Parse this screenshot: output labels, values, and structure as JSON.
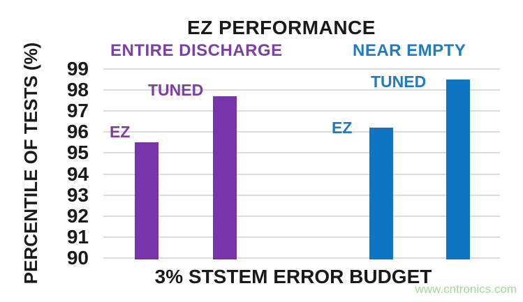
{
  "title": "EZ PERFORMANCE",
  "watermark": "www.cntronics.com",
  "colors": {
    "purple_bar": "#7835A8",
    "blue_bar": "#0E75C2",
    "purple_text": "#7B3FA6",
    "blue_text": "#1E7CC0",
    "grid": "#DCDCDC",
    "title_text": "#1A1A1A",
    "watermark_green": "#A8D79B"
  },
  "chart_data": {
    "type": "bar",
    "title": "EZ PERFORMANCE",
    "ylabel": "PERCENTILE OF TESTS (%)",
    "xlabel": "3% STSTEM ERROR BUDGET",
    "ylim": [
      90,
      99
    ],
    "yticks": [
      90,
      91,
      92,
      93,
      94,
      95,
      96,
      97,
      98,
      99
    ],
    "grid": true,
    "legend_position": "inline-labels",
    "groups": [
      {
        "label": "ENTIRE DISCHARGE",
        "color_key": "purple",
        "bars": [
          {
            "label": "EZ",
            "value": 95.5
          },
          {
            "label": "TUNED",
            "value": 97.7
          }
        ]
      },
      {
        "label": "NEAR EMPTY",
        "color_key": "blue",
        "bars": [
          {
            "label": "EZ",
            "value": 96.2
          },
          {
            "label": "TUNED",
            "value": 98.5
          }
        ]
      }
    ]
  }
}
